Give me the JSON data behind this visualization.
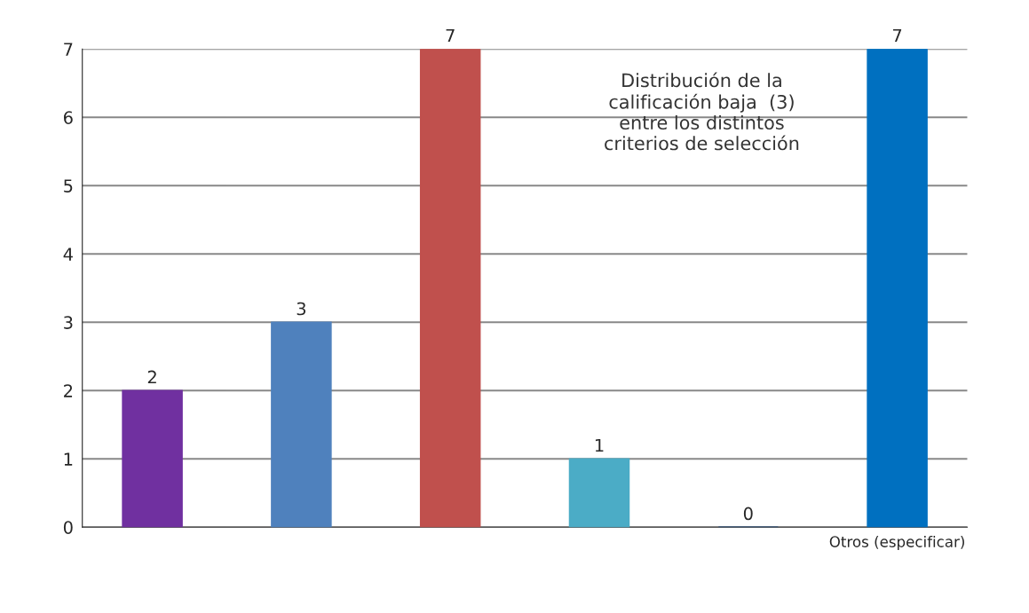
{
  "chart_data": {
    "type": "bar",
    "title": "Distribución de la\ncalificación baja  (3)\nentre los distintos\ncriterios de selección",
    "categories": [
      null,
      null,
      null,
      null,
      null,
      "Otros (especificar)"
    ],
    "values": [
      2,
      3,
      7,
      1,
      0,
      7
    ],
    "colors": [
      "#7030a0",
      "#4f81bd",
      "#c0504d",
      "#4bacc6",
      "#1f497d",
      "#0070c0"
    ],
    "ylim": [
      0,
      7
    ],
    "yticks": [
      0,
      1,
      2,
      3,
      4,
      5,
      6,
      7
    ],
    "grid": "y",
    "data_labels": true
  }
}
